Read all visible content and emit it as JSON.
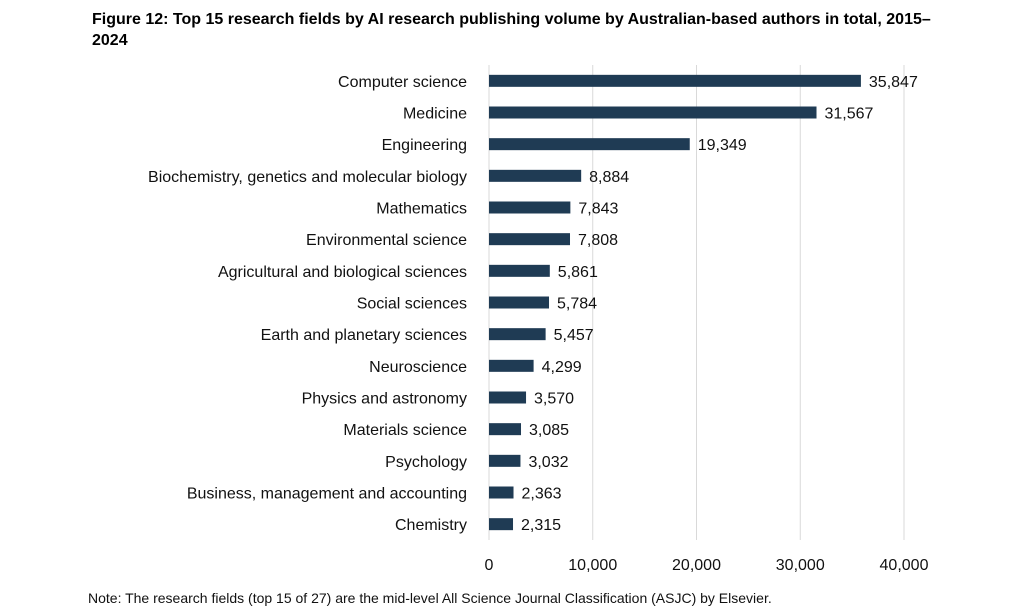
{
  "figure": {
    "title": "Figure 12: Top 15 research fields by AI research publishing volume by Australian-based authors in total, 2015–2024",
    "note": "Note: The research fields (top 15 of 27) are the mid-level All Science Journal Classification (ASJC) by Elsevier."
  },
  "chart_data": {
    "type": "bar",
    "orientation": "horizontal",
    "categories": [
      "Computer science",
      "Medicine",
      "Engineering",
      "Biochemistry, genetics and molecular biology",
      "Mathematics",
      "Environmental science",
      "Agricultural and biological sciences",
      "Social sciences",
      "Earth and planetary sciences",
      "Neuroscience",
      "Physics and astronomy",
      "Materials science",
      "Psychology",
      "Business, management and accounting",
      "Chemistry"
    ],
    "values": [
      35847,
      31567,
      19349,
      8884,
      7843,
      7808,
      5861,
      5784,
      5457,
      4299,
      3570,
      3085,
      3032,
      2363,
      2315
    ],
    "value_labels": [
      "35,847",
      "31,567",
      "19,349",
      "8,884",
      "7,843",
      "7,808",
      "5,861",
      "5,784",
      "5,457",
      "4,299",
      "3,570",
      "3,085",
      "3,032",
      "2,363",
      "2,315"
    ],
    "xlim": [
      0,
      40000
    ],
    "ticks": [
      0,
      10000,
      20000,
      30000,
      40000
    ],
    "tick_labels": [
      "0",
      "10,000",
      "20,000",
      "30,000",
      "40,000"
    ],
    "grid": "vertical",
    "bar_color": "#1f3b54",
    "grid_color": "#d9d9d9"
  }
}
